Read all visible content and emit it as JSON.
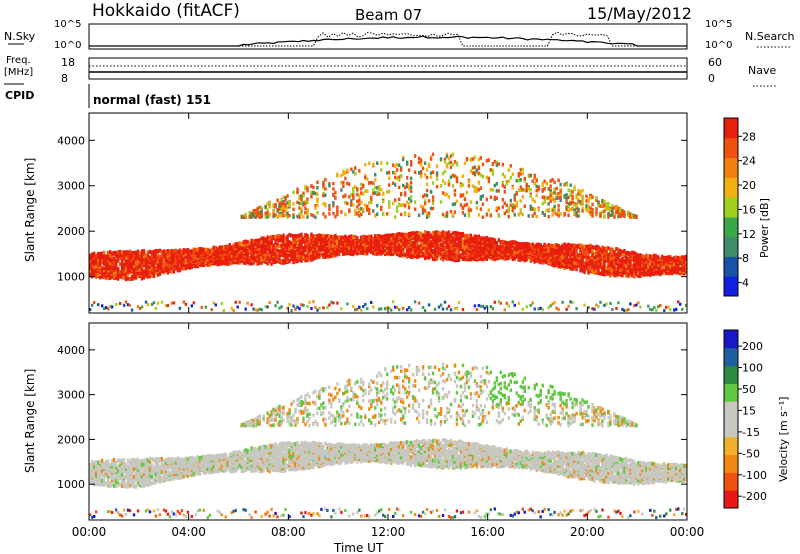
{
  "header": {
    "title": "Hokkaido (fitACF)",
    "beam": "Beam 07",
    "date": "15/May/2012"
  },
  "top_panel": {
    "left_label": "N.Sky",
    "right_label": "N.Search",
    "left_ticks": [
      "10^5",
      "10^0"
    ],
    "right_ticks": [
      "10^5",
      "10^0"
    ]
  },
  "freq_panel": {
    "left_label_line1": "Freq.",
    "left_label_line2": "[MHz]",
    "right_label": "Nave",
    "left_ticks": [
      "18",
      "8"
    ],
    "right_ticks": [
      "60",
      "0"
    ]
  },
  "cpid": {
    "label": "CPID",
    "value": "normal (fast) 151"
  },
  "colors": {
    "power": [
      "#1020e0",
      "#1a52a8",
      "#3f8c6a",
      "#3aa84a",
      "#9fd020",
      "#f0b010",
      "#f08010",
      "#f05010",
      "#e81e0e"
    ],
    "velocity": [
      "#e81818",
      "#f05010",
      "#f08a10",
      "#f0b030",
      "#c8c8c0",
      "#c8c8c0",
      "#60c840",
      "#2e8a40",
      "#205fa0",
      "#1818c8"
    ]
  },
  "chart_data": [
    {
      "type": "heatmap",
      "name": "power",
      "ylabel": "Slant Range [km]",
      "y_ticks": [
        "1000",
        "2000",
        "3000",
        "4000"
      ],
      "ylim": [
        200,
        4600
      ],
      "x_ticks": [
        "00:00",
        "04:00",
        "08:00",
        "12:00",
        "16:00",
        "20:00",
        "00:00"
      ],
      "xlim": [
        0,
        24
      ],
      "colorbar_label": "Power [dB]",
      "colorbar_ticks": [
        "28",
        "24",
        "20",
        "16",
        "12",
        "8",
        "4"
      ],
      "colorbar_range": [
        0,
        30
      ]
    },
    {
      "type": "heatmap",
      "name": "velocity",
      "ylabel": "Slant Range [km]",
      "y_ticks": [
        "1000",
        "2000",
        "3000",
        "4000"
      ],
      "ylim": [
        200,
        4600
      ],
      "x_ticks": [
        "00:00",
        "04:00",
        "08:00",
        "12:00",
        "16:00",
        "20:00",
        "00:00"
      ],
      "xlim": [
        0,
        24
      ],
      "xlabel": "Time UT",
      "colorbar_label": "Velocity [m s⁻¹]",
      "colorbar_ticks": [
        "200",
        "100",
        "50",
        "15",
        "-15",
        "-50",
        "-100",
        "-200"
      ],
      "colorbar_range": [
        -250,
        250
      ]
    }
  ]
}
